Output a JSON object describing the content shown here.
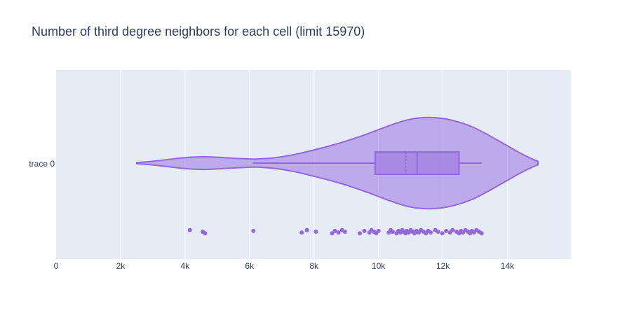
{
  "chart_data": {
    "type": "violin",
    "title": "Number of third degree neighbors for each cell (limit 15970)",
    "orientation": "horizontal",
    "xlim": [
      0,
      15970
    ],
    "x_ticks": [
      {
        "value": 0,
        "label": "0"
      },
      {
        "value": 2000,
        "label": "2k"
      },
      {
        "value": 4000,
        "label": "4k"
      },
      {
        "value": 6000,
        "label": "6k"
      },
      {
        "value": 8000,
        "label": "8k"
      },
      {
        "value": 10000,
        "label": "10k"
      },
      {
        "value": 12000,
        "label": "12k"
      },
      {
        "value": 14000,
        "label": "14k"
      }
    ],
    "grid": true,
    "colors": {
      "plot_bg": "#e5ecf6",
      "violin": "#9467dd",
      "grid": "#ffffff",
      "text": "#2a3f5f"
    },
    "series": [
      {
        "name": "trace 0",
        "violin_span": [
          2500,
          14950
        ],
        "density": [
          [
            2500,
            0.01
          ],
          [
            3000,
            0.04
          ],
          [
            3500,
            0.08
          ],
          [
            4000,
            0.12
          ],
          [
            4600,
            0.14
          ],
          [
            5200,
            0.12
          ],
          [
            5700,
            0.1
          ],
          [
            6200,
            0.09
          ],
          [
            6800,
            0.12
          ],
          [
            7400,
            0.19
          ],
          [
            8000,
            0.29
          ],
          [
            8600,
            0.4
          ],
          [
            9200,
            0.53
          ],
          [
            9800,
            0.68
          ],
          [
            10400,
            0.84
          ],
          [
            10900,
            0.95
          ],
          [
            11400,
            1.0
          ],
          [
            11900,
            0.99
          ],
          [
            12400,
            0.92
          ],
          [
            12900,
            0.8
          ],
          [
            13400,
            0.62
          ],
          [
            13900,
            0.42
          ],
          [
            14400,
            0.22
          ],
          [
            14800,
            0.08
          ],
          [
            14950,
            0.04
          ]
        ],
        "box": {
          "whisker_low": 6100,
          "q1": 9900,
          "median": 11200,
          "q3": 12500,
          "whisker_high": 13200
        },
        "mean": 10850,
        "points": [
          4150,
          4550,
          4620,
          6120,
          7620,
          7780,
          8060,
          8560,
          8650,
          8760,
          8870,
          8960,
          9420,
          9560,
          9720,
          9780,
          9860,
          9930,
          10000,
          10320,
          10380,
          10440,
          10560,
          10620,
          10680,
          10740,
          10790,
          10840,
          10880,
          10940,
          11000,
          11060,
          11120,
          11180,
          11250,
          11320,
          11400,
          11470,
          11540,
          11620,
          11760,
          11850,
          11980,
          12100,
          12220,
          12300,
          12420,
          12500,
          12560,
          12620,
          12700,
          12780,
          12840,
          12900,
          12960,
          13040,
          13120,
          13200
        ]
      }
    ]
  }
}
